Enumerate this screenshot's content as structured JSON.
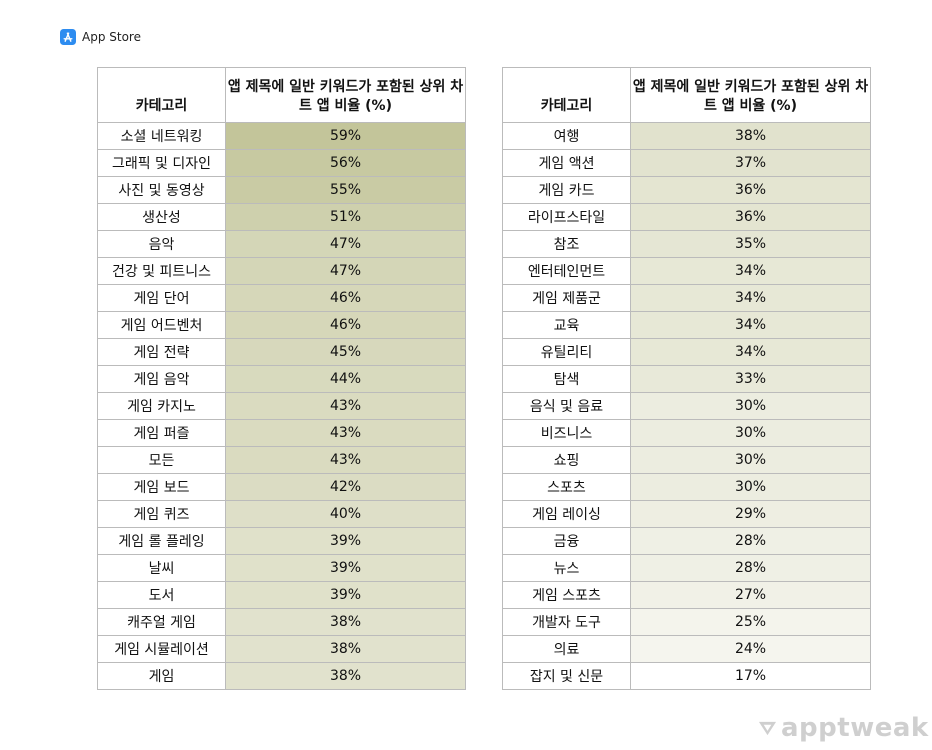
{
  "header": {
    "label": "App Store",
    "icon": "app-store-icon"
  },
  "chart_data": {
    "type": "table",
    "columns": [
      "카테고리",
      "앱 제목에 일반 키워드가 포함된 상위 차트 앱 비율 (%)"
    ],
    "tables": [
      {
        "rows": [
          {
            "category": "소셜 네트워킹",
            "value": "59%"
          },
          {
            "category": "그래픽 및 디자인",
            "value": "56%"
          },
          {
            "category": "사진 및 동영상",
            "value": "55%"
          },
          {
            "category": "생산성",
            "value": "51%"
          },
          {
            "category": "음악",
            "value": "47%"
          },
          {
            "category": "건강 및 피트니스",
            "value": "47%"
          },
          {
            "category": "게임 단어",
            "value": "46%"
          },
          {
            "category": "게임 어드벤처",
            "value": "46%"
          },
          {
            "category": "게임 전략",
            "value": "45%"
          },
          {
            "category": "게임 음악",
            "value": "44%"
          },
          {
            "category": "게임 카지노",
            "value": "43%"
          },
          {
            "category": "게임 퍼즐",
            "value": "43%"
          },
          {
            "category": "모든",
            "value": "43%"
          },
          {
            "category": "게임 보드",
            "value": "42%"
          },
          {
            "category": "게임 퀴즈",
            "value": "40%"
          },
          {
            "category": "게임 롤 플레잉",
            "value": "39%"
          },
          {
            "category": "날씨",
            "value": "39%"
          },
          {
            "category": "도서",
            "value": "39%"
          },
          {
            "category": "캐주얼 게임",
            "value": "38%"
          },
          {
            "category": "게임 시뮬레이션",
            "value": "38%"
          },
          {
            "category": "게임",
            "value": "38%"
          }
        ]
      },
      {
        "rows": [
          {
            "category": "여행",
            "value": "38%"
          },
          {
            "category": "게임 액션",
            "value": "37%"
          },
          {
            "category": "게임 카드",
            "value": "36%"
          },
          {
            "category": "라이프스타일",
            "value": "36%"
          },
          {
            "category": "참조",
            "value": "35%"
          },
          {
            "category": "엔터테인먼트",
            "value": "34%"
          },
          {
            "category": "게임 제품군",
            "value": "34%"
          },
          {
            "category": "교육",
            "value": "34%"
          },
          {
            "category": "유틸리티",
            "value": "34%"
          },
          {
            "category": "탐색",
            "value": "33%"
          },
          {
            "category": "음식 및 음료",
            "value": "30%"
          },
          {
            "category": "비즈니스",
            "value": "30%"
          },
          {
            "category": "쇼핑",
            "value": "30%"
          },
          {
            "category": "스포츠",
            "value": "30%"
          },
          {
            "category": "게임 레이싱",
            "value": "29%"
          },
          {
            "category": "금융",
            "value": "28%"
          },
          {
            "category": "뉴스",
            "value": "28%"
          },
          {
            "category": "게임 스포츠",
            "value": "27%"
          },
          {
            "category": "개발자 도구",
            "value": "25%"
          },
          {
            "category": "의료",
            "value": "24%"
          },
          {
            "category": "잡지 및 신문",
            "value": "17%"
          }
        ]
      }
    ],
    "heatmap_colors": {
      "high": "#c3c59a",
      "low": "#ffffff"
    },
    "value_range": [
      17,
      59
    ]
  },
  "footer": {
    "logo_text": "apptweak",
    "logo_icon": "apptweak-logo-icon"
  }
}
